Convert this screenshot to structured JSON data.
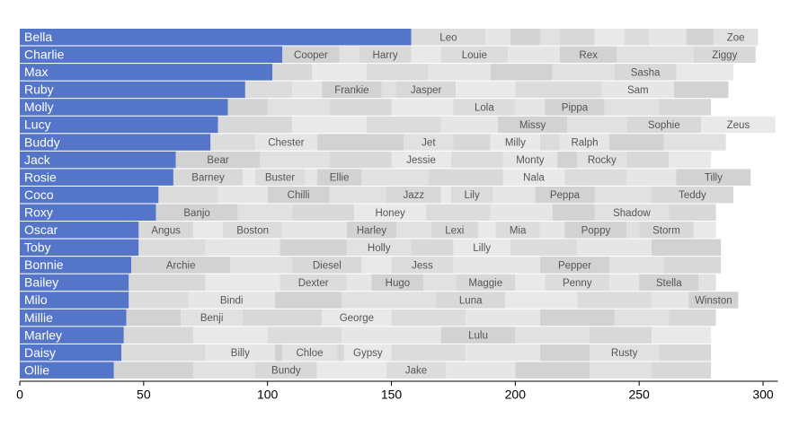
{
  "chart_data": {
    "type": "bar",
    "color": "#5575c9",
    "categories": [
      "Bella",
      "Charlie",
      "Max",
      "Ruby",
      "Molly",
      "Lucy",
      "Buddy",
      "Jack",
      "Rosie",
      "Coco",
      "Roxy",
      "Oscar",
      "Toby",
      "Bonnie",
      "Bailey",
      "Milo",
      "Millie",
      "Marley",
      "Daisy",
      "Ollie"
    ],
    "values": [
      158,
      106,
      102,
      91,
      84,
      80,
      77,
      63,
      62,
      56,
      55,
      48,
      48,
      45,
      44,
      44,
      43,
      42,
      41,
      38
    ],
    "others": [
      [
        {
          "name": "Leo",
          "value": 30
        },
        {
          "name": null,
          "value": 10
        },
        {
          "name": null,
          "value": 12
        },
        {
          "name": null,
          "value": 8
        },
        {
          "name": null,
          "value": 14
        },
        {
          "name": null,
          "value": 12
        },
        {
          "name": null,
          "value": 10
        },
        {
          "name": null,
          "value": 15
        },
        {
          "name": null,
          "value": 11
        },
        {
          "name": "Zoe",
          "value": 18
        }
      ],
      [
        {
          "name": "Cooper",
          "value": 23
        },
        {
          "name": null,
          "value": 8
        },
        {
          "name": "Harry",
          "value": 21
        },
        {
          "name": null,
          "value": 12
        },
        {
          "name": "Louie",
          "value": 27
        },
        {
          "name": null,
          "value": 21
        },
        {
          "name": "Rex",
          "value": 23
        },
        {
          "name": null,
          "value": 31
        },
        {
          "name": "Ziggy",
          "value": 25
        }
      ],
      [
        {
          "name": null,
          "value": 16
        },
        {
          "name": null,
          "value": 22
        },
        {
          "name": null,
          "value": 25
        },
        {
          "name": null,
          "value": 25
        },
        {
          "name": null,
          "value": 25
        },
        {
          "name": null,
          "value": 25
        },
        {
          "name": "Sasha",
          "value": 25
        },
        {
          "name": null,
          "value": 23
        }
      ],
      [
        {
          "name": null,
          "value": 19
        },
        {
          "name": null,
          "value": 12
        },
        {
          "name": "Frankie",
          "value": 24
        },
        {
          "name": null,
          "value": 6
        },
        {
          "name": "Jasper",
          "value": 24
        },
        {
          "name": null,
          "value": 24
        },
        {
          "name": null,
          "value": 35
        },
        {
          "name": "Sam",
          "value": 29
        },
        {
          "name": null,
          "value": 22
        }
      ],
      [
        {
          "name": null,
          "value": 16
        },
        {
          "name": null,
          "value": 25
        },
        {
          "name": null,
          "value": 25
        },
        {
          "name": null,
          "value": 25
        },
        {
          "name": "Lola",
          "value": 25
        },
        {
          "name": null,
          "value": 12
        },
        {
          "name": "Pippa",
          "value": 24
        },
        {
          "name": null,
          "value": 22
        },
        {
          "name": null,
          "value": 21
        }
      ],
      [
        {
          "name": null,
          "value": 30
        },
        {
          "name": null,
          "value": 30
        },
        {
          "name": null,
          "value": 30
        },
        {
          "name": null,
          "value": 23
        },
        {
          "name": "Missy",
          "value": 28
        },
        {
          "name": null,
          "value": 24
        },
        {
          "name": "Sophie",
          "value": 30
        },
        {
          "name": "Zeus",
          "value": 30
        }
      ],
      [
        {
          "name": null,
          "value": 18
        },
        {
          "name": "Chester",
          "value": 25
        },
        {
          "name": null,
          "value": 35
        },
        {
          "name": "Jet",
          "value": 20
        },
        {
          "name": null,
          "value": 15
        },
        {
          "name": "Milly",
          "value": 20
        },
        {
          "name": null,
          "value": 8
        },
        {
          "name": "Ralph",
          "value": 20
        },
        {
          "name": null,
          "value": 22
        },
        {
          "name": null,
          "value": 25
        }
      ],
      [
        {
          "name": "Bear",
          "value": 34
        },
        {
          "name": null,
          "value": 28
        },
        {
          "name": null,
          "value": 25
        },
        {
          "name": "Jessie",
          "value": 24
        },
        {
          "name": null,
          "value": 21
        },
        {
          "name": "Monty",
          "value": 22
        },
        {
          "name": null,
          "value": 8
        },
        {
          "name": "Rocky",
          "value": 20
        },
        {
          "name": null,
          "value": 17
        },
        {
          "name": null,
          "value": 17
        }
      ],
      [
        {
          "name": "Barney",
          "value": 28
        },
        {
          "name": null,
          "value": 5
        },
        {
          "name": "Buster",
          "value": 20
        },
        {
          "name": null,
          "value": 5
        },
        {
          "name": "Ellie",
          "value": 18
        },
        {
          "name": null,
          "value": 27
        },
        {
          "name": null,
          "value": 30
        },
        {
          "name": "Nala",
          "value": 25
        },
        {
          "name": null,
          "value": 25
        },
        {
          "name": null,
          "value": 20
        },
        {
          "name": "Tilly",
          "value": 30
        }
      ],
      [
        {
          "name": null,
          "value": 24
        },
        {
          "name": null,
          "value": 20
        },
        {
          "name": "Chilli",
          "value": 25
        },
        {
          "name": null,
          "value": 23
        },
        {
          "name": "Jazz",
          "value": 22
        },
        {
          "name": null,
          "value": 4
        },
        {
          "name": "Lily",
          "value": 17
        },
        {
          "name": null,
          "value": 17
        },
        {
          "name": "Peppa",
          "value": 24
        },
        {
          "name": null,
          "value": 23
        },
        {
          "name": "Teddy",
          "value": 33
        }
      ],
      [
        {
          "name": "Banjo",
          "value": 33
        },
        {
          "name": null,
          "value": 22
        },
        {
          "name": null,
          "value": 25
        },
        {
          "name": "Honey",
          "value": 29
        },
        {
          "name": null,
          "value": 26
        },
        {
          "name": null,
          "value": 25
        },
        {
          "name": null,
          "value": 17
        },
        {
          "name": "Shadow",
          "value": 30
        },
        {
          "name": null,
          "value": 19
        }
      ],
      [
        {
          "name": "Angus",
          "value": 22
        },
        {
          "name": null,
          "value": 12
        },
        {
          "name": "Boston",
          "value": 24
        },
        {
          "name": null,
          "value": 26
        },
        {
          "name": "Harley",
          "value": 20
        },
        {
          "name": null,
          "value": 14
        },
        {
          "name": "Lexi",
          "value": 19
        },
        {
          "name": null,
          "value": 7
        },
        {
          "name": "Mia",
          "value": 18
        },
        {
          "name": null,
          "value": 10
        },
        {
          "name": "Poppy",
          "value": 25
        },
        {
          "name": null,
          "value": 5
        },
        {
          "name": "Storm",
          "value": 22
        },
        {
          "name": null,
          "value": 9
        }
      ],
      [
        {
          "name": null,
          "value": 27
        },
        {
          "name": null,
          "value": 30
        },
        {
          "name": null,
          "value": 27
        },
        {
          "name": "Holly",
          "value": 26
        },
        {
          "name": null,
          "value": 17
        },
        {
          "name": "Lilly",
          "value": 23
        },
        {
          "name": null,
          "value": 27
        },
        {
          "name": null,
          "value": 30
        },
        {
          "name": null,
          "value": 28
        }
      ],
      [
        {
          "name": "Archie",
          "value": 40
        },
        {
          "name": null,
          "value": 25
        },
        {
          "name": "Diesel",
          "value": 28
        },
        {
          "name": null,
          "value": 12
        },
        {
          "name": "Jess",
          "value": 25
        },
        {
          "name": null,
          "value": 35
        },
        {
          "name": "Pepper",
          "value": 28
        },
        {
          "name": null,
          "value": 22
        },
        {
          "name": null,
          "value": 23
        }
      ],
      [
        {
          "name": null,
          "value": 31
        },
        {
          "name": null,
          "value": 30
        },
        {
          "name": "Dexter",
          "value": 27
        },
        {
          "name": null,
          "value": 10
        },
        {
          "name": "Hugo",
          "value": 21
        },
        {
          "name": null,
          "value": 13
        },
        {
          "name": "Maggie",
          "value": 24
        },
        {
          "name": null,
          "value": 12
        },
        {
          "name": "Penny",
          "value": 26
        },
        {
          "name": null,
          "value": 12
        },
        {
          "name": "Stella",
          "value": 24
        },
        {
          "name": null,
          "value": 7
        }
      ],
      [
        {
          "name": null,
          "value": 24
        },
        {
          "name": "Bindi",
          "value": 35
        },
        {
          "name": null,
          "value": 27
        },
        {
          "name": null,
          "value": 38
        },
        {
          "name": "Luna",
          "value": 28
        },
        {
          "name": null,
          "value": 29
        },
        {
          "name": null,
          "value": 30
        },
        {
          "name": null,
          "value": 15
        },
        {
          "name": "Winston",
          "value": 20
        }
      ],
      [
        {
          "name": null,
          "value": 22
        },
        {
          "name": "Benji",
          "value": 25
        },
        {
          "name": null,
          "value": 32
        },
        {
          "name": "George",
          "value": 28
        },
        {
          "name": null,
          "value": 30
        },
        {
          "name": null,
          "value": 30
        },
        {
          "name": null,
          "value": 30
        },
        {
          "name": null,
          "value": 22
        },
        {
          "name": null,
          "value": 19
        }
      ],
      [
        {
          "name": null,
          "value": 28
        },
        {
          "name": null,
          "value": 30
        },
        {
          "name": null,
          "value": 30
        },
        {
          "name": null,
          "value": 40
        },
        {
          "name": "Lulu",
          "value": 30
        },
        {
          "name": null,
          "value": 30
        },
        {
          "name": null,
          "value": 25
        },
        {
          "name": null,
          "value": 24
        }
      ],
      [
        {
          "name": null,
          "value": 34
        },
        {
          "name": "Billy",
          "value": 28
        },
        {
          "name": null,
          "value": 3
        },
        {
          "name": "Chloe",
          "value": 22
        },
        {
          "name": null,
          "value": 3
        },
        {
          "name": "Gypsy",
          "value": 19
        },
        {
          "name": null,
          "value": 30
        },
        {
          "name": null,
          "value": 30
        },
        {
          "name": null,
          "value": 20
        },
        {
          "name": "Rusty",
          "value": 28
        },
        {
          "name": null,
          "value": 21
        }
      ],
      [
        {
          "name": null,
          "value": 32
        },
        {
          "name": null,
          "value": 25
        },
        {
          "name": "Bundy",
          "value": 25
        },
        {
          "name": null,
          "value": 28
        },
        {
          "name": "Jake",
          "value": 24
        },
        {
          "name": null,
          "value": 28
        },
        {
          "name": null,
          "value": 30
        },
        {
          "name": null,
          "value": 25
        },
        {
          "name": null,
          "value": 24
        }
      ]
    ],
    "xlim": [
      0,
      306
    ],
    "xticks": [
      0,
      50,
      100,
      150,
      200,
      250,
      300
    ]
  }
}
